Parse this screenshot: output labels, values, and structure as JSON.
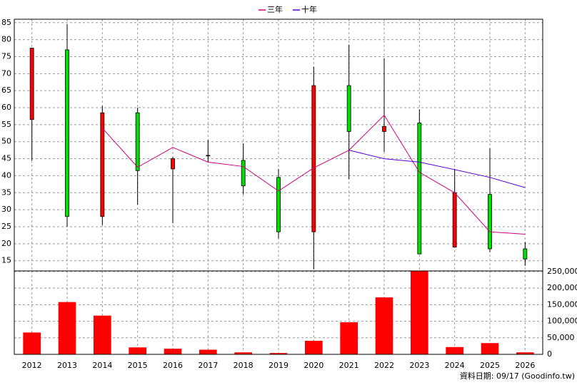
{
  "chart_data": {
    "type": "candlestick",
    "categories": [
      "2012",
      "2013",
      "2014",
      "2015",
      "2016",
      "2017",
      "2018",
      "2019",
      "2020",
      "2021",
      "2022",
      "2023",
      "2024",
      "2025",
      "2026"
    ],
    "open": [
      56.5,
      77,
      28,
      58.5,
      42,
      46,
      44.5,
      39.5,
      23.5,
      66.5,
      53,
      55.5,
      19,
      34.5,
      18.5
    ],
    "high": [
      77.5,
      84.5,
      60.5,
      60,
      45.5,
      50.5,
      49.5,
      42,
      72,
      78.5,
      74.5,
      59.5,
      42,
      48,
      20.5
    ],
    "low": [
      44.5,
      25,
      25.5,
      31.5,
      26,
      44,
      34.5,
      21.5,
      12.5,
      39,
      47,
      17,
      19,
      17.5,
      13.5
    ],
    "close": [
      77.5,
      28,
      58.5,
      41.5,
      45,
      46,
      37,
      23.5,
      66.5,
      53,
      54.5,
      17,
      35,
      18.5,
      15.5
    ],
    "up_color": "#ff0000",
    "down_color": "#00e000",
    "ylim": [
      12,
      86
    ],
    "yticks": [
      15,
      20,
      25,
      30,
      35,
      40,
      45,
      50,
      55,
      60,
      65,
      70,
      75,
      80,
      85
    ],
    "grid": true,
    "series": [
      {
        "name": "三年",
        "color": "#d0007a",
        "values": [
          null,
          null,
          54,
          42.5,
          48.3,
          44,
          42.7,
          35.5,
          42.3,
          47.5,
          57.8,
          41,
          35,
          23.5,
          22.8
        ]
      },
      {
        "name": "十年",
        "color": "#5a00d8",
        "values": [
          null,
          null,
          null,
          null,
          null,
          null,
          null,
          null,
          null,
          47.5,
          45,
          44,
          41.8,
          39.5,
          36.5
        ]
      }
    ],
    "volume": {
      "color": "#ff0000",
      "values": [
        66000,
        158000,
        117000,
        21000,
        17000,
        14000,
        6000,
        4000,
        41000,
        97000,
        172000,
        252000,
        22000,
        34000,
        6000
      ],
      "ylim": [
        0,
        252000
      ],
      "yticks": [
        0,
        {
          "value": 50000,
          "label": "50,000"
        },
        {
          "value": 100000,
          "label": "100,000"
        },
        {
          "value": 150000,
          "label": "150,000"
        },
        {
          "value": 200000,
          "label": "200,000"
        },
        {
          "value": 250000,
          "label": "250,000"
        }
      ]
    },
    "note": "資料日期: 09/17  (Goodinfo.tw)"
  }
}
